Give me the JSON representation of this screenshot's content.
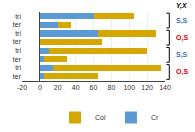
{
  "chart_data": {
    "type": "bar",
    "orientation": "horizontal",
    "stacked": true,
    "categories": [
      "tri",
      "ter",
      "tri",
      "ter",
      "tri",
      "ter",
      "tri",
      "ter"
    ],
    "series": [
      {
        "name": "Cr",
        "color": "#5B9BD5",
        "values": [
          60,
          20,
          65,
          0,
          10,
          5,
          15,
          5
        ]
      },
      {
        "name": "Col",
        "color": "#D4A800",
        "values": [
          45,
          15,
          65,
          70,
          110,
          25,
          120,
          60
        ]
      }
    ],
    "xlim": [
      -20,
      140
    ],
    "xticks": [
      -20,
      0,
      20,
      40,
      60,
      80,
      100,
      120,
      140
    ],
    "grid": true,
    "legend": "lower right",
    "annotations": [
      {
        "text": "Y,X"
      },
      {
        "text": "S,S",
        "color": "#4472C4",
        "rows": [
          0,
          1
        ]
      },
      {
        "text": "O,S",
        "color": "#CC0000",
        "rows": [
          2,
          3
        ]
      },
      {
        "text": "S,S",
        "color": "#4472C4",
        "rows": [
          4,
          5
        ]
      },
      {
        "text": "O,S",
        "color": "#CC0000",
        "rows": [
          6,
          7
        ]
      }
    ]
  }
}
